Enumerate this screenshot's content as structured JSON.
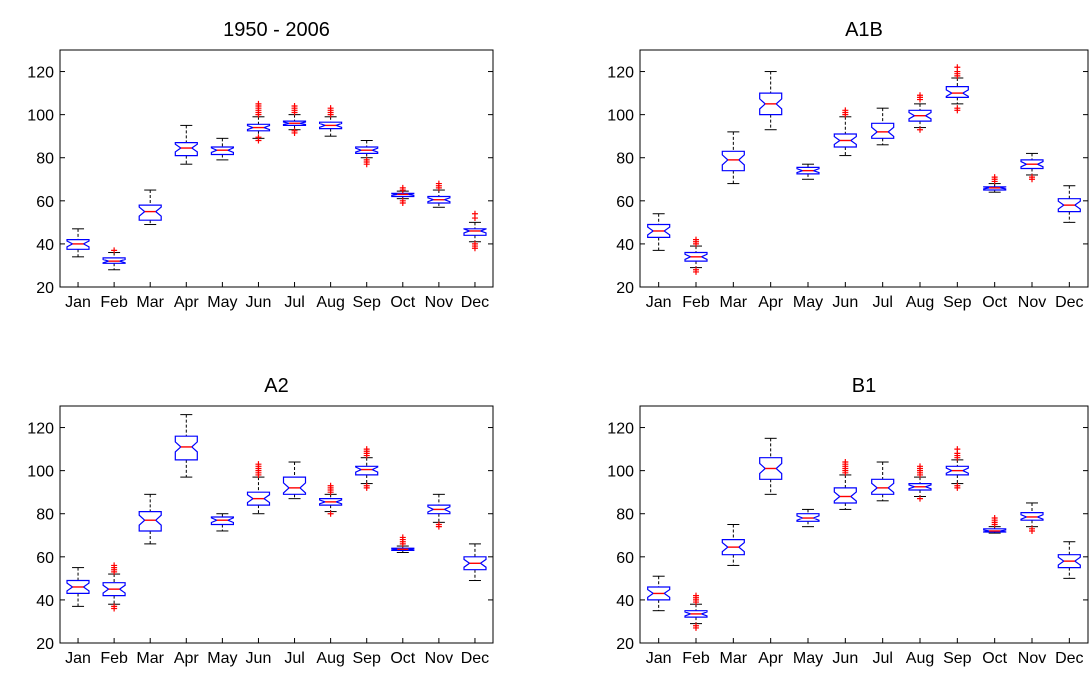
{
  "colors": {
    "box": "#0000ff",
    "median": "#ff0000",
    "whisker": "#000000",
    "outlier": "#ff0000",
    "axis": "#000000"
  },
  "chart_data": [
    {
      "type": "box",
      "title": "1950 - 2006",
      "xlabel": "",
      "ylabel": "",
      "ylim": [
        20,
        130
      ],
      "yticks": [
        20,
        40,
        60,
        80,
        100,
        120
      ],
      "categories": [
        "Jan",
        "Feb",
        "Mar",
        "Apr",
        "May",
        "Jun",
        "Jul",
        "Aug",
        "Sep",
        "Oct",
        "Nov",
        "Dec"
      ],
      "boxes": [
        {
          "min": 34,
          "q1": 37.5,
          "median": 40,
          "q3": 42,
          "max": 47,
          "outliers": []
        },
        {
          "min": 28,
          "q1": 31,
          "median": 32,
          "q3": 33.5,
          "max": 36,
          "outliers": [
            37
          ]
        },
        {
          "min": 49,
          "q1": 51,
          "median": 55,
          "q3": 58,
          "max": 65,
          "outliers": []
        },
        {
          "min": 77,
          "q1": 81,
          "median": 84.5,
          "q3": 87,
          "max": 95,
          "outliers": []
        },
        {
          "min": 79,
          "q1": 81.5,
          "median": 83.5,
          "q3": 85,
          "max": 89,
          "outliers": []
        },
        {
          "min": 89,
          "q1": 92.5,
          "median": 94,
          "q3": 95.5,
          "max": 99,
          "outliers": [
            88,
            89.5,
            100,
            101,
            102,
            103,
            104,
            105
          ]
        },
        {
          "min": 93,
          "q1": 95,
          "median": 96,
          "q3": 97,
          "max": 100,
          "outliers": [
            91.5,
            92.5,
            101,
            102,
            103,
            104
          ]
        },
        {
          "min": 90,
          "q1": 93.5,
          "median": 95,
          "q3": 96.5,
          "max": 99,
          "outliers": [
            100,
            101,
            102,
            103
          ]
        },
        {
          "min": 80,
          "q1": 82,
          "median": 83.5,
          "q3": 85,
          "max": 88,
          "outliers": [
            77,
            78,
            79
          ]
        },
        {
          "min": 61,
          "q1": 62,
          "median": 63,
          "q3": 63.5,
          "max": 64.5,
          "outliers": [
            59,
            60,
            65,
            66
          ]
        },
        {
          "min": 57,
          "q1": 59,
          "median": 60.5,
          "q3": 62,
          "max": 65,
          "outliers": [
            66,
            67,
            68
          ]
        },
        {
          "min": 41,
          "q1": 44,
          "median": 46,
          "q3": 47,
          "max": 50,
          "outliers": [
            38,
            39,
            40,
            52,
            54
          ]
        }
      ]
    },
    {
      "type": "box",
      "title": "A1B",
      "xlabel": "",
      "ylabel": "",
      "ylim": [
        20,
        130
      ],
      "yticks": [
        20,
        40,
        60,
        80,
        100,
        120
      ],
      "categories": [
        "Jan",
        "Feb",
        "Mar",
        "Apr",
        "May",
        "Jun",
        "Jul",
        "Aug",
        "Sep",
        "Oct",
        "Nov",
        "Dec"
      ],
      "boxes": [
        {
          "min": 37,
          "q1": 43,
          "median": 46,
          "q3": 49,
          "max": 54,
          "outliers": []
        },
        {
          "min": 29,
          "q1": 32,
          "median": 34,
          "q3": 36,
          "max": 39,
          "outliers": [
            27,
            28,
            40,
            41,
            42
          ]
        },
        {
          "min": 68,
          "q1": 74,
          "median": 79,
          "q3": 83,
          "max": 92,
          "outliers": []
        },
        {
          "min": 93,
          "q1": 100,
          "median": 105,
          "q3": 110,
          "max": 120,
          "outliers": []
        },
        {
          "min": 70,
          "q1": 72.5,
          "median": 74,
          "q3": 75.5,
          "max": 77,
          "outliers": []
        },
        {
          "min": 81,
          "q1": 85,
          "median": 88,
          "q3": 91,
          "max": 99,
          "outliers": [
            100,
            101,
            102
          ]
        },
        {
          "min": 86,
          "q1": 89,
          "median": 92,
          "q3": 96,
          "max": 103,
          "outliers": []
        },
        {
          "min": 94,
          "q1": 97,
          "median": 99.5,
          "q3": 102,
          "max": 105,
          "outliers": [
            93,
            107,
            108,
            109
          ]
        },
        {
          "min": 105,
          "q1": 108,
          "median": 110,
          "q3": 113,
          "max": 117,
          "outliers": [
            102,
            103,
            118,
            119,
            120,
            122
          ]
        },
        {
          "min": 64,
          "q1": 65,
          "median": 66,
          "q3": 66.5,
          "max": 68,
          "outliers": [
            69,
            70,
            71
          ]
        },
        {
          "min": 72,
          "q1": 75,
          "median": 77,
          "q3": 79,
          "max": 82,
          "outliers": [
            70,
            71
          ]
        },
        {
          "min": 50,
          "q1": 55,
          "median": 58,
          "q3": 61,
          "max": 67,
          "outliers": []
        }
      ]
    },
    {
      "type": "box",
      "title": "A2",
      "xlabel": "",
      "ylabel": "",
      "ylim": [
        20,
        130
      ],
      "yticks": [
        20,
        40,
        60,
        80,
        100,
        120
      ],
      "categories": [
        "Jan",
        "Feb",
        "Mar",
        "Apr",
        "May",
        "Jun",
        "Jul",
        "Aug",
        "Sep",
        "Oct",
        "Nov",
        "Dec"
      ],
      "boxes": [
        {
          "min": 37,
          "q1": 43,
          "median": 46,
          "q3": 49,
          "max": 55,
          "outliers": []
        },
        {
          "min": 38,
          "q1": 42,
          "median": 45,
          "q3": 48,
          "max": 52,
          "outliers": [
            36,
            37,
            53,
            54,
            55,
            56
          ]
        },
        {
          "min": 66,
          "q1": 72,
          "median": 77,
          "q3": 81,
          "max": 89,
          "outliers": []
        },
        {
          "min": 97,
          "q1": 105,
          "median": 111,
          "q3": 116,
          "max": 126,
          "outliers": []
        },
        {
          "min": 72,
          "q1": 75,
          "median": 77,
          "q3": 78.5,
          "max": 80,
          "outliers": []
        },
        {
          "min": 80,
          "q1": 84,
          "median": 87,
          "q3": 90,
          "max": 97,
          "outliers": [
            98,
            99,
            100,
            101,
            102,
            103
          ]
        },
        {
          "min": 87,
          "q1": 89,
          "median": 92,
          "q3": 97,
          "max": 104,
          "outliers": []
        },
        {
          "min": 81,
          "q1": 84,
          "median": 85.5,
          "q3": 87,
          "max": 89,
          "outliers": [
            80,
            90,
            91,
            92,
            93
          ]
        },
        {
          "min": 94,
          "q1": 98,
          "median": 100.5,
          "q3": 102,
          "max": 106,
          "outliers": [
            92,
            93,
            107,
            108,
            109,
            110
          ]
        },
        {
          "min": 62,
          "q1": 63,
          "median": 63.5,
          "q3": 64,
          "max": 65,
          "outliers": [
            66,
            67,
            68,
            69
          ]
        },
        {
          "min": 76,
          "q1": 80,
          "median": 82,
          "q3": 84,
          "max": 89,
          "outliers": [
            74,
            75
          ]
        },
        {
          "min": 49,
          "q1": 54,
          "median": 57,
          "q3": 60,
          "max": 66,
          "outliers": []
        }
      ]
    },
    {
      "type": "box",
      "title": "B1",
      "xlabel": "",
      "ylabel": "",
      "ylim": [
        20,
        130
      ],
      "yticks": [
        20,
        40,
        60,
        80,
        100,
        120
      ],
      "categories": [
        "Jan",
        "Feb",
        "Mar",
        "Apr",
        "May",
        "Jun",
        "Jul",
        "Aug",
        "Sep",
        "Oct",
        "Nov",
        "Dec"
      ],
      "boxes": [
        {
          "min": 35,
          "q1": 40,
          "median": 43,
          "q3": 46,
          "max": 51,
          "outliers": []
        },
        {
          "min": 29,
          "q1": 32,
          "median": 33.5,
          "q3": 35,
          "max": 38,
          "outliers": [
            27,
            28,
            39,
            40,
            41,
            42
          ]
        },
        {
          "min": 56,
          "q1": 61,
          "median": 64.5,
          "q3": 68,
          "max": 75,
          "outliers": []
        },
        {
          "min": 89,
          "q1": 96,
          "median": 101,
          "q3": 106,
          "max": 115,
          "outliers": []
        },
        {
          "min": 74,
          "q1": 76.5,
          "median": 78,
          "q3": 80,
          "max": 82,
          "outliers": []
        },
        {
          "min": 82,
          "q1": 85,
          "median": 88,
          "q3": 92,
          "max": 98,
          "outliers": [
            99,
            100,
            101,
            102,
            103,
            104
          ]
        },
        {
          "min": 86,
          "q1": 89,
          "median": 92,
          "q3": 96,
          "max": 104,
          "outliers": []
        },
        {
          "min": 88,
          "q1": 91,
          "median": 92.5,
          "q3": 94,
          "max": 97,
          "outliers": [
            87,
            98,
            99,
            100,
            101,
            102
          ]
        },
        {
          "min": 94,
          "q1": 98,
          "median": 100,
          "q3": 102,
          "max": 105,
          "outliers": [
            92,
            93,
            106,
            107,
            108,
            110
          ]
        },
        {
          "min": 71,
          "q1": 71.5,
          "median": 72,
          "q3": 73,
          "max": 74,
          "outliers": [
            75,
            76,
            77,
            78
          ]
        },
        {
          "min": 74,
          "q1": 77,
          "median": 78.5,
          "q3": 80.5,
          "max": 85,
          "outliers": [
            72,
            73
          ]
        },
        {
          "min": 50,
          "q1": 55,
          "median": 58,
          "q3": 61,
          "max": 67,
          "outliers": []
        }
      ]
    }
  ]
}
